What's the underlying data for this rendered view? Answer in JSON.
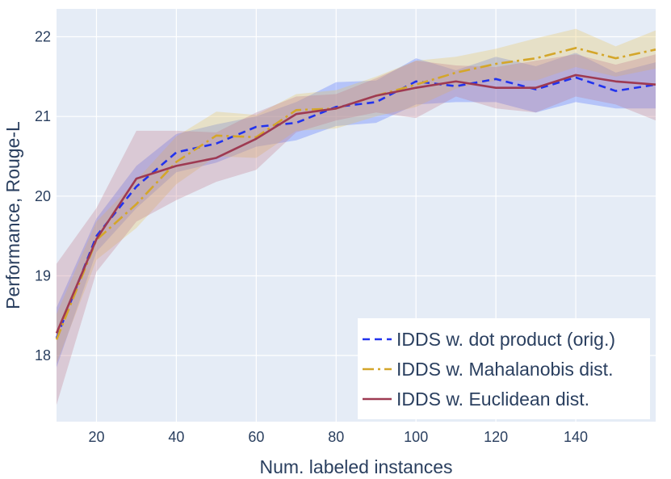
{
  "chart_data": {
    "type": "line",
    "title": "",
    "xlabel": "Num. labeled instances",
    "ylabel": "Performance, Rouge-L",
    "xlim": [
      10,
      160
    ],
    "ylim": [
      17.17,
      22.35
    ],
    "xticks": [
      20,
      40,
      60,
      80,
      100,
      120,
      140
    ],
    "yticks": [
      18,
      19,
      20,
      21,
      22
    ],
    "grid": true,
    "legend_position": "bottom-right",
    "x": [
      10,
      20,
      30,
      40,
      50,
      60,
      70,
      80,
      90,
      100,
      110,
      120,
      130,
      140,
      150,
      160
    ],
    "series": [
      {
        "name": "IDDS w. dot product (orig.)",
        "color": "#2233ee",
        "band_color": "#4466ff",
        "dash": "dash",
        "values": [
          18.22,
          19.5,
          20.12,
          20.55,
          20.66,
          20.87,
          20.92,
          21.12,
          21.18,
          21.44,
          21.38,
          21.47,
          21.34,
          21.49,
          21.32,
          21.4
        ],
        "lower": [
          17.85,
          19.3,
          19.85,
          20.3,
          20.42,
          20.62,
          20.7,
          20.88,
          20.92,
          21.15,
          21.18,
          21.18,
          21.05,
          21.18,
          21.1,
          21.1
        ],
        "upper": [
          18.6,
          19.72,
          20.38,
          20.78,
          20.9,
          21.0,
          21.18,
          21.43,
          21.45,
          21.73,
          21.58,
          21.75,
          21.63,
          21.8,
          21.55,
          21.68
        ]
      },
      {
        "name": "IDDS w. Mahalanobis dist.",
        "color": "#d4a62a",
        "band_color": "#e8c35a",
        "dash": "dashdot",
        "values": [
          18.2,
          19.45,
          19.9,
          20.43,
          20.76,
          20.74,
          21.08,
          21.1,
          21.26,
          21.4,
          21.55,
          21.66,
          21.73,
          21.86,
          21.73,
          21.84
        ],
        "lower": [
          17.9,
          19.2,
          19.6,
          20.15,
          20.5,
          20.48,
          20.82,
          20.85,
          21.0,
          21.12,
          21.35,
          21.45,
          21.45,
          21.62,
          21.5,
          21.6
        ],
        "upper": [
          18.52,
          19.68,
          20.2,
          20.75,
          21.06,
          21.02,
          21.28,
          21.33,
          21.5,
          21.7,
          21.75,
          21.85,
          21.98,
          22.1,
          21.88,
          22.08
        ]
      },
      {
        "name": "IDDS w. Euclidean dist.",
        "color": "#9e3a52",
        "band_color": "#c07888",
        "dash": "solid",
        "values": [
          18.28,
          19.46,
          20.22,
          20.38,
          20.48,
          20.72,
          21.03,
          21.1,
          21.26,
          21.36,
          21.44,
          21.36,
          21.36,
          21.52,
          21.44,
          21.4
        ],
        "lower": [
          17.38,
          19.05,
          19.68,
          19.95,
          20.18,
          20.33,
          20.8,
          20.95,
          21.05,
          20.98,
          21.25,
          21.1,
          21.05,
          21.25,
          21.15,
          20.95
        ],
        "upper": [
          19.15,
          19.85,
          20.82,
          20.82,
          20.8,
          21.05,
          21.25,
          21.28,
          21.48,
          21.7,
          21.64,
          21.62,
          21.7,
          21.78,
          21.65,
          21.78
        ]
      }
    ]
  }
}
